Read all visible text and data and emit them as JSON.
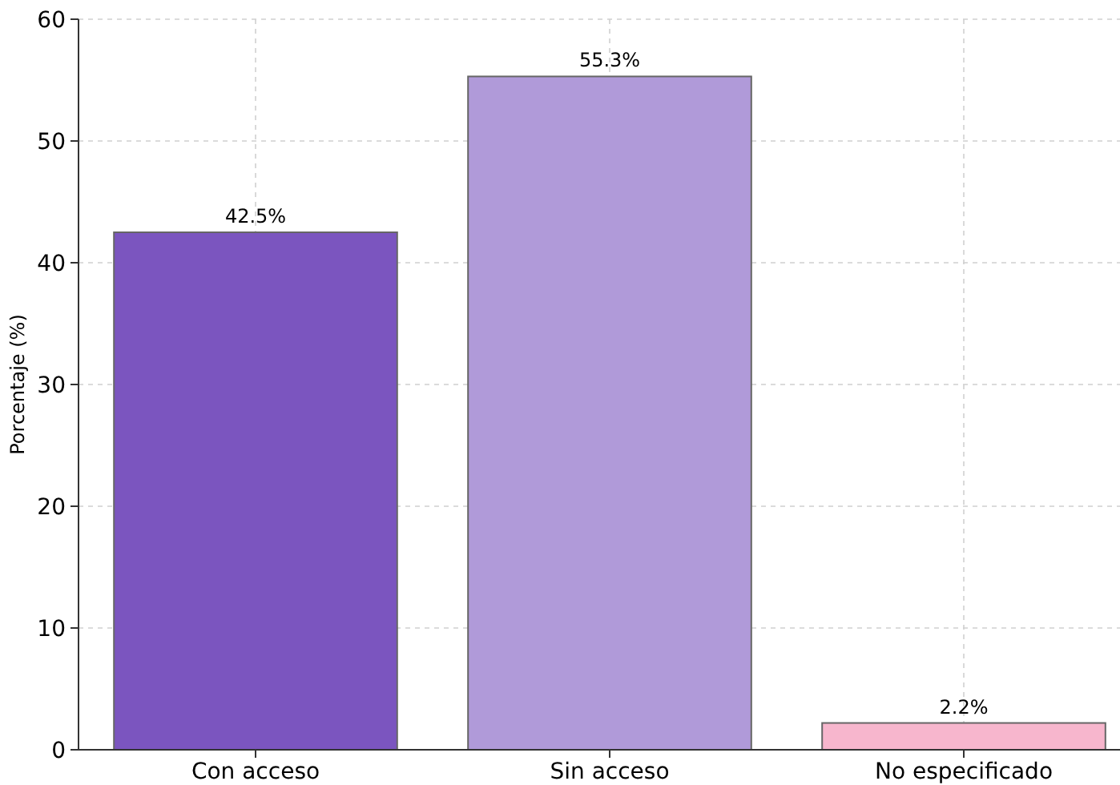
{
  "chart_data": {
    "type": "bar",
    "ylabel": "Porcentaje (%)",
    "categories": [
      "Con acceso",
      "Sin acceso",
      "No especificado"
    ],
    "values": [
      42.5,
      55.3,
      2.2
    ],
    "colors": [
      "#7b55bf",
      "#b09ad9",
      "#f7b6cd"
    ],
    "value_labels": [
      "42.5%",
      "55.3%",
      "2.2%"
    ],
    "ylim": [
      0,
      60
    ],
    "yticks": [
      0,
      10,
      20,
      30,
      40,
      50,
      60
    ],
    "grid": true
  }
}
